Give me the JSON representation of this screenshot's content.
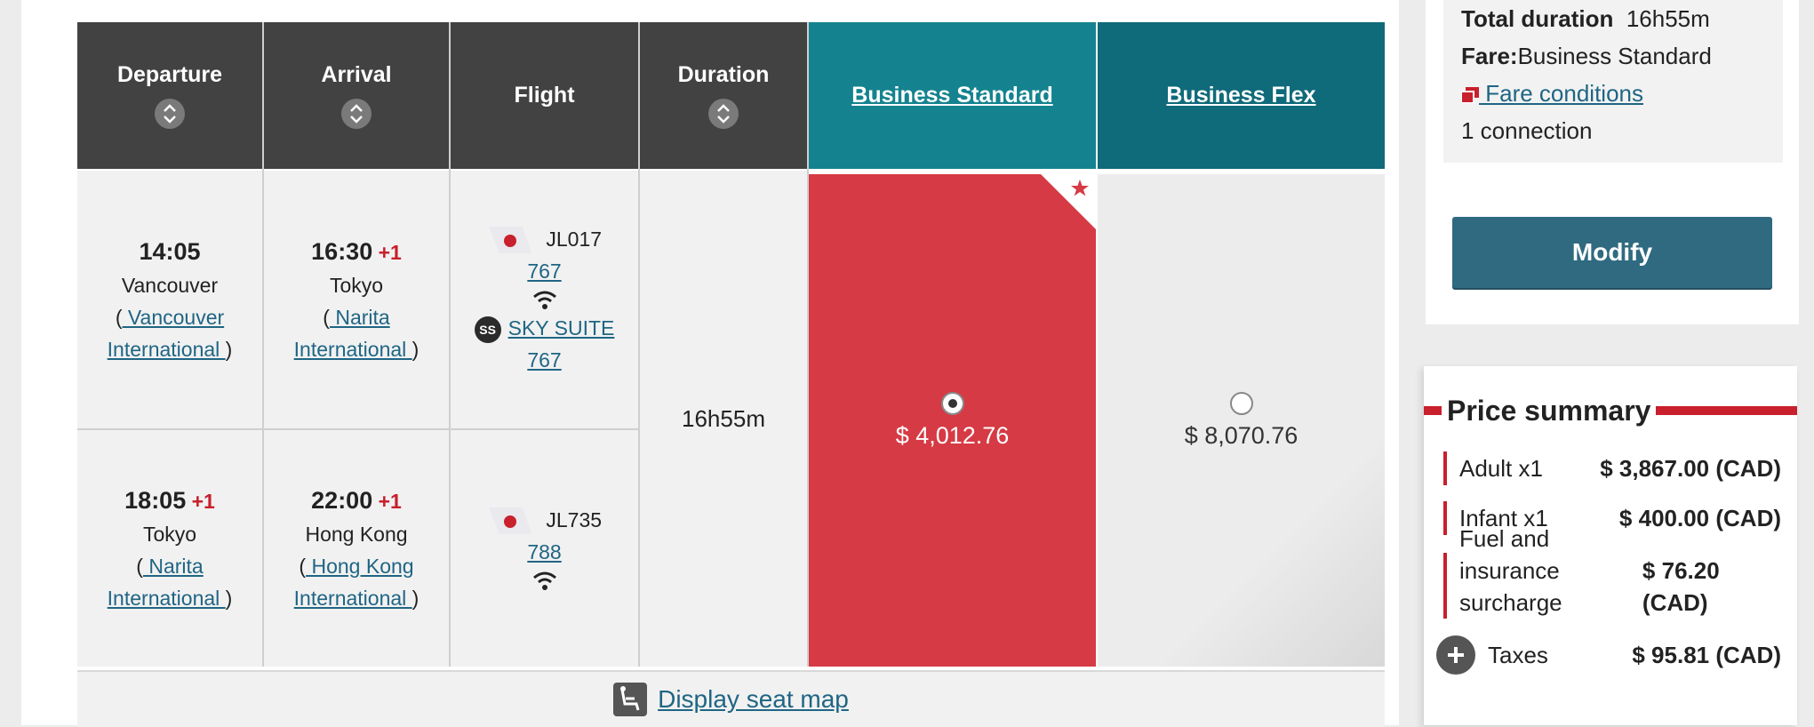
{
  "table": {
    "headers": {
      "departure": "Departure",
      "arrival": "Arrival",
      "flight": "Flight",
      "duration": "Duration",
      "business_standard": "Business Standard",
      "business_flex": "Business Flex"
    },
    "segments": [
      {
        "dep_time": "14:05",
        "dep_city": "Vancouver",
        "dep_airport_line1": " Vancouver",
        "dep_airport_line2": "International ",
        "arr_time": "16:30",
        "arr_plus": "+1",
        "arr_city": "Tokyo",
        "arr_airport_line1": " Narita",
        "arr_airport_line2": "International ",
        "flight_no": "JL017",
        "aircraft": "767",
        "seat_badge": "SS",
        "seat_product": "SKY SUITE",
        "seat_aircraft": "767"
      },
      {
        "dep_time": "18:05",
        "dep_plus": "+1",
        "dep_city": "Tokyo",
        "dep_airport_line1": " Narita",
        "dep_airport_line2": "International ",
        "arr_time": "22:00",
        "arr_plus": "+1",
        "arr_city": "Hong Kong",
        "arr_airport_line1": " Hong Kong",
        "arr_airport_line2": "International ",
        "flight_no": "JL735",
        "aircraft": "788"
      }
    ],
    "total_duration": "16h55m",
    "fares": {
      "business_standard": "$ 4,012.76",
      "business_flex": "$ 8,070.76",
      "selected": "business_standard"
    },
    "seat_map_link": "Display seat map"
  },
  "sidebar": {
    "total_duration_label": "Total duration",
    "total_duration_value": "16h55m",
    "fare_label": "Fare:",
    "fare_value": "Business Standard",
    "fare_conditions_link": " Fare conditions",
    "connections": "1 connection",
    "modify_button": "Modify"
  },
  "price_summary": {
    "title": "Price summary",
    "rows": [
      {
        "label": "Adult x1",
        "amount": "$ 3,867.00 (CAD)"
      },
      {
        "label": "Infant x1",
        "amount": "$ 400.00 (CAD)"
      },
      {
        "label_line1": "Fuel and insurance",
        "label_line2": "surcharge",
        "amount": "$ 76.20 (CAD)"
      }
    ],
    "taxes_label": "Taxes",
    "taxes_amount": "$ 95.81 (CAD)"
  },
  "colors": {
    "header_dark": "#424242",
    "header_teal_standard": "#14838f",
    "header_teal_flex": "#0f6a7a",
    "selected_fare": "#d63a44",
    "accent_red": "#c8202c",
    "link": "#1f6584",
    "modify_button": "#2f6a80"
  },
  "icons": [
    "sort-icon",
    "jal-tail-logo-icon",
    "wifi-icon",
    "sky-suite-badge-icon",
    "star-icon",
    "seat-icon",
    "document-icon",
    "plus-circle-icon",
    "radio-icon"
  ]
}
